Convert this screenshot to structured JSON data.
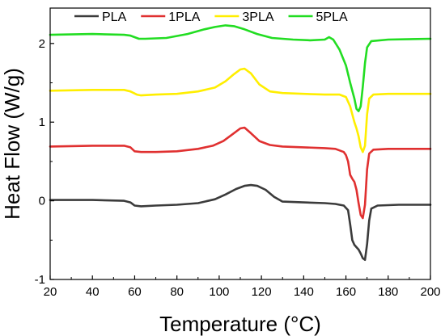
{
  "chart_data": {
    "type": "line",
    "xlabel": "Temperature (°C)",
    "ylabel": "Heat Flow (W/g)",
    "xlim": [
      20,
      200
    ],
    "ylim": [
      -1,
      2.45
    ],
    "xticks": [
      20,
      40,
      60,
      80,
      100,
      120,
      140,
      160,
      180,
      200
    ],
    "yticks": [
      -1,
      0,
      1,
      2
    ],
    "legend_position": "top",
    "grid": false,
    "series": [
      {
        "name": "PLA",
        "color": "#3b3b3b",
        "points": [
          [
            20,
            0.01
          ],
          [
            40,
            0.01
          ],
          [
            55,
            0.0
          ],
          [
            58,
            -0.02
          ],
          [
            60,
            -0.06
          ],
          [
            63,
            -0.07
          ],
          [
            70,
            -0.06
          ],
          [
            80,
            -0.05
          ],
          [
            90,
            -0.03
          ],
          [
            98,
            0.02
          ],
          [
            103,
            0.08
          ],
          [
            108,
            0.15
          ],
          [
            112,
            0.19
          ],
          [
            115,
            0.2
          ],
          [
            118,
            0.19
          ],
          [
            122,
            0.14
          ],
          [
            126,
            0.05
          ],
          [
            130,
            -0.01
          ],
          [
            140,
            -0.02
          ],
          [
            150,
            -0.03
          ],
          [
            155,
            -0.04
          ],
          [
            159,
            -0.06
          ],
          [
            161,
            -0.12
          ],
          [
            162,
            -0.3
          ],
          [
            163,
            -0.5
          ],
          [
            164,
            -0.56
          ],
          [
            165,
            -0.59
          ],
          [
            166,
            -0.62
          ],
          [
            167,
            -0.67
          ],
          [
            168,
            -0.73
          ],
          [
            169,
            -0.75
          ],
          [
            170,
            -0.55
          ],
          [
            171,
            -0.25
          ],
          [
            172,
            -0.1
          ],
          [
            175,
            -0.06
          ],
          [
            185,
            -0.05
          ],
          [
            200,
            -0.05
          ]
        ]
      },
      {
        "name": "1PLA",
        "color": "#e03030",
        "points": [
          [
            20,
            0.69
          ],
          [
            40,
            0.7
          ],
          [
            55,
            0.7
          ],
          [
            58,
            0.68
          ],
          [
            60,
            0.63
          ],
          [
            63,
            0.62
          ],
          [
            70,
            0.62
          ],
          [
            80,
            0.63
          ],
          [
            90,
            0.66
          ],
          [
            97,
            0.7
          ],
          [
            102,
            0.76
          ],
          [
            106,
            0.84
          ],
          [
            110,
            0.92
          ],
          [
            112,
            0.93
          ],
          [
            115,
            0.86
          ],
          [
            119,
            0.76
          ],
          [
            124,
            0.71
          ],
          [
            130,
            0.69
          ],
          [
            140,
            0.68
          ],
          [
            150,
            0.67
          ],
          [
            155,
            0.66
          ],
          [
            159,
            0.62
          ],
          [
            160,
            0.58
          ],
          [
            161,
            0.5
          ],
          [
            162,
            0.33
          ],
          [
            163,
            0.28
          ],
          [
            164,
            0.24
          ],
          [
            165,
            0.14
          ],
          [
            166,
            -0.03
          ],
          [
            167,
            -0.18
          ],
          [
            168,
            -0.22
          ],
          [
            169,
            -0.05
          ],
          [
            170,
            0.4
          ],
          [
            171,
            0.6
          ],
          [
            173,
            0.65
          ],
          [
            180,
            0.66
          ],
          [
            200,
            0.66
          ]
        ]
      },
      {
        "name": "3PLA",
        "color": "#ffee00",
        "points": [
          [
            20,
            1.4
          ],
          [
            40,
            1.41
          ],
          [
            55,
            1.41
          ],
          [
            58,
            1.39
          ],
          [
            61,
            1.35
          ],
          [
            63,
            1.34
          ],
          [
            70,
            1.35
          ],
          [
            80,
            1.36
          ],
          [
            90,
            1.39
          ],
          [
            98,
            1.44
          ],
          [
            103,
            1.52
          ],
          [
            107,
            1.61
          ],
          [
            110,
            1.67
          ],
          [
            112,
            1.68
          ],
          [
            115,
            1.62
          ],
          [
            119,
            1.48
          ],
          [
            124,
            1.39
          ],
          [
            130,
            1.37
          ],
          [
            140,
            1.36
          ],
          [
            150,
            1.35
          ],
          [
            157,
            1.35
          ],
          [
            160,
            1.32
          ],
          [
            162,
            1.2
          ],
          [
            163,
            1.1
          ],
          [
            164,
            1.0
          ],
          [
            165,
            0.92
          ],
          [
            166,
            0.82
          ],
          [
            167,
            0.68
          ],
          [
            168,
            0.62
          ],
          [
            169,
            0.7
          ],
          [
            170,
            1.1
          ],
          [
            171,
            1.3
          ],
          [
            173,
            1.35
          ],
          [
            180,
            1.36
          ],
          [
            200,
            1.36
          ]
        ]
      },
      {
        "name": "5PLA",
        "color": "#22dd22",
        "points": [
          [
            20,
            2.11
          ],
          [
            40,
            2.12
          ],
          [
            55,
            2.11
          ],
          [
            58,
            2.1
          ],
          [
            62,
            2.06
          ],
          [
            65,
            2.06
          ],
          [
            75,
            2.07
          ],
          [
            85,
            2.12
          ],
          [
            93,
            2.18
          ],
          [
            98,
            2.21
          ],
          [
            103,
            2.23
          ],
          [
            107,
            2.22
          ],
          [
            112,
            2.18
          ],
          [
            118,
            2.12
          ],
          [
            125,
            2.07
          ],
          [
            135,
            2.05
          ],
          [
            143,
            2.04
          ],
          [
            150,
            2.05
          ],
          [
            152,
            2.08
          ],
          [
            154,
            2.05
          ],
          [
            157,
            1.92
          ],
          [
            160,
            1.72
          ],
          [
            162,
            1.5
          ],
          [
            164,
            1.3
          ],
          [
            165,
            1.17
          ],
          [
            166,
            1.14
          ],
          [
            167,
            1.2
          ],
          [
            168,
            1.45
          ],
          [
            169,
            1.75
          ],
          [
            170,
            1.95
          ],
          [
            172,
            2.03
          ],
          [
            180,
            2.05
          ],
          [
            200,
            2.06
          ]
        ]
      }
    ]
  }
}
